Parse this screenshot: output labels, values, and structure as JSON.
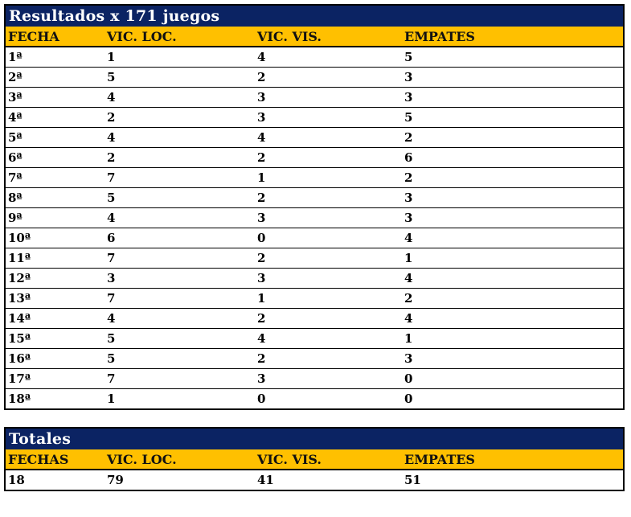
{
  "colors": {
    "title_band_bg": "#0b2363",
    "title_band_text": "#ffffff",
    "header_band_bg": "#ffc000",
    "header_band_text": "#111111",
    "body_text": "#000000",
    "border": "#000000"
  },
  "results_table": {
    "title": "Resultados x 171 juegos",
    "columns": [
      "FECHA",
      "VIC. LOC.",
      "VIC. VIS.",
      "EMPATES"
    ],
    "rows": [
      [
        "1ª",
        "1",
        "4",
        "5"
      ],
      [
        "2ª",
        "5",
        "2",
        "3"
      ],
      [
        "3ª",
        "4",
        "3",
        "3"
      ],
      [
        "4ª",
        "2",
        "3",
        "5"
      ],
      [
        "5ª",
        "4",
        "4",
        "2"
      ],
      [
        "6ª",
        "2",
        "2",
        "6"
      ],
      [
        "7ª",
        "7",
        "1",
        "2"
      ],
      [
        "8ª",
        "5",
        "2",
        "3"
      ],
      [
        "9ª",
        "4",
        "3",
        "3"
      ],
      [
        "10ª",
        "6",
        "0",
        "4"
      ],
      [
        "11ª",
        "7",
        "2",
        "1"
      ],
      [
        "12ª",
        "3",
        "3",
        "4"
      ],
      [
        "13ª",
        "7",
        "1",
        "2"
      ],
      [
        "14ª",
        "4",
        "2",
        "4"
      ],
      [
        "15ª",
        "5",
        "4",
        "1"
      ],
      [
        "16ª",
        "5",
        "2",
        "3"
      ],
      [
        "17ª",
        "7",
        "3",
        "0"
      ],
      [
        "18ª",
        "1",
        "0",
        "0"
      ]
    ]
  },
  "totals_table": {
    "title": "Totales",
    "columns": [
      "FECHAS",
      "VIC. LOC.",
      "VIC. VIS.",
      "EMPATES"
    ],
    "rows": [
      [
        "18",
        "79",
        "41",
        "51"
      ]
    ]
  },
  "chart_data": [
    {
      "type": "table",
      "title": "Resultados x 171 juegos",
      "columns": [
        "FECHA",
        "VIC. LOC.",
        "VIC. VIS.",
        "EMPATES"
      ],
      "categories": [
        "1ª",
        "2ª",
        "3ª",
        "4ª",
        "5ª",
        "6ª",
        "7ª",
        "8ª",
        "9ª",
        "10ª",
        "11ª",
        "12ª",
        "13ª",
        "14ª",
        "15ª",
        "16ª",
        "17ª",
        "18ª"
      ],
      "series": [
        {
          "name": "VIC. LOC.",
          "values": [
            1,
            5,
            4,
            2,
            4,
            2,
            7,
            5,
            4,
            6,
            7,
            3,
            7,
            4,
            5,
            5,
            7,
            1
          ]
        },
        {
          "name": "VIC. VIS.",
          "values": [
            4,
            2,
            3,
            3,
            4,
            2,
            1,
            2,
            3,
            0,
            2,
            3,
            1,
            2,
            4,
            2,
            3,
            0
          ]
        },
        {
          "name": "EMPATES",
          "values": [
            5,
            3,
            3,
            5,
            2,
            6,
            2,
            3,
            3,
            4,
            1,
            4,
            2,
            4,
            1,
            3,
            0,
            0
          ]
        }
      ]
    },
    {
      "type": "table",
      "title": "Totales",
      "columns": [
        "FECHAS",
        "VIC. LOC.",
        "VIC. VIS.",
        "EMPATES"
      ],
      "values": [
        18,
        79,
        41,
        51
      ]
    }
  ]
}
